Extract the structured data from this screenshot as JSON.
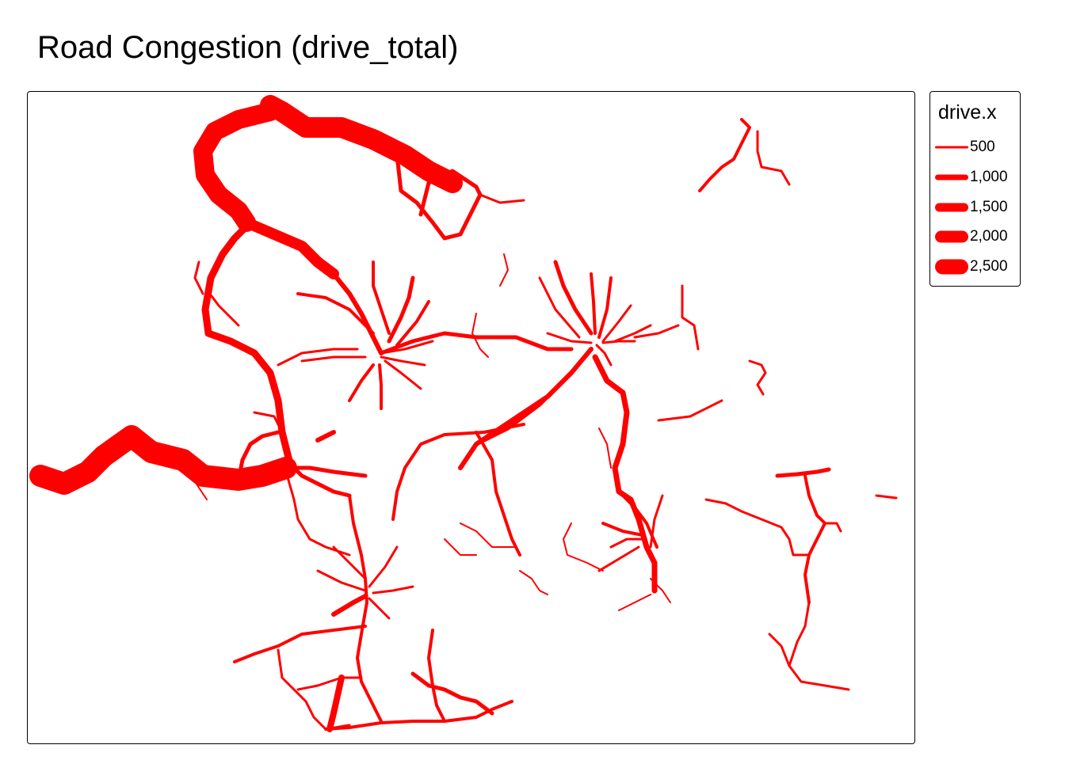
{
  "title": "Road Congestion (drive_total)",
  "legend": {
    "title": "drive.x",
    "items": [
      {
        "label": "500",
        "value": 500
      },
      {
        "label": "1,000",
        "value": 1000
      },
      {
        "label": "1,500",
        "value": 1500
      },
      {
        "label": "2,000",
        "value": 2000
      },
      {
        "label": "2,500",
        "value": 2500
      }
    ]
  },
  "colors": {
    "road": "#ff0000",
    "frame": "#000000",
    "background": "#ffffff"
  }
}
